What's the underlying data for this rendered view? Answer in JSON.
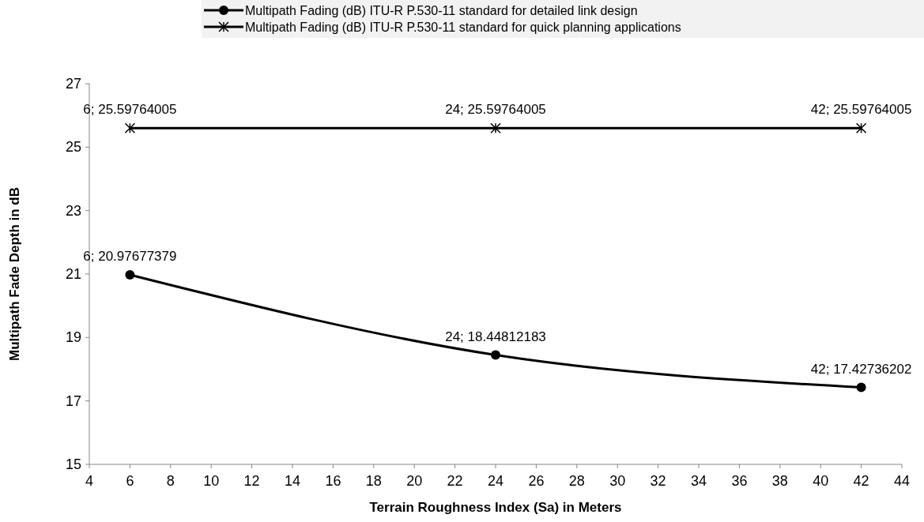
{
  "chart_data": {
    "type": "line",
    "xlabel": "Terrain Roughness Index (Sa) in Meters",
    "ylabel": "Multipath Fade Depth in dB",
    "xlim": [
      4,
      44
    ],
    "xticks": [
      4,
      6,
      8,
      10,
      12,
      14,
      16,
      18,
      20,
      22,
      24,
      26,
      28,
      30,
      32,
      34,
      36,
      38,
      40,
      42,
      44
    ],
    "ylim": [
      15,
      27
    ],
    "yticks": [
      15,
      17,
      19,
      21,
      23,
      25,
      27
    ],
    "grid": false,
    "legend": "top",
    "line_style": "solid",
    "x": [
      6,
      24,
      42
    ],
    "series": [
      {
        "name": "Multipath Fading (dB) ITU-R P.530-11 standard for detailed link design",
        "color": "#000000",
        "marker": "circle",
        "values": [
          20.97677379,
          18.44812183,
          17.42736202
        ],
        "value_labels": [
          "6; 20.97677379",
          "24; 18.44812183",
          "42; 17.42736202"
        ]
      },
      {
        "name": "Multipath Fading (dB) ITU-R P.530-11 standard for quick planning applications",
        "color": "#000000",
        "marker": "cross",
        "values": [
          25.59764005,
          25.59764005,
          25.59764005
        ],
        "value_labels": [
          "6; 25.59764005",
          "24; 25.59764005",
          "42; 25.59764005"
        ]
      }
    ]
  }
}
